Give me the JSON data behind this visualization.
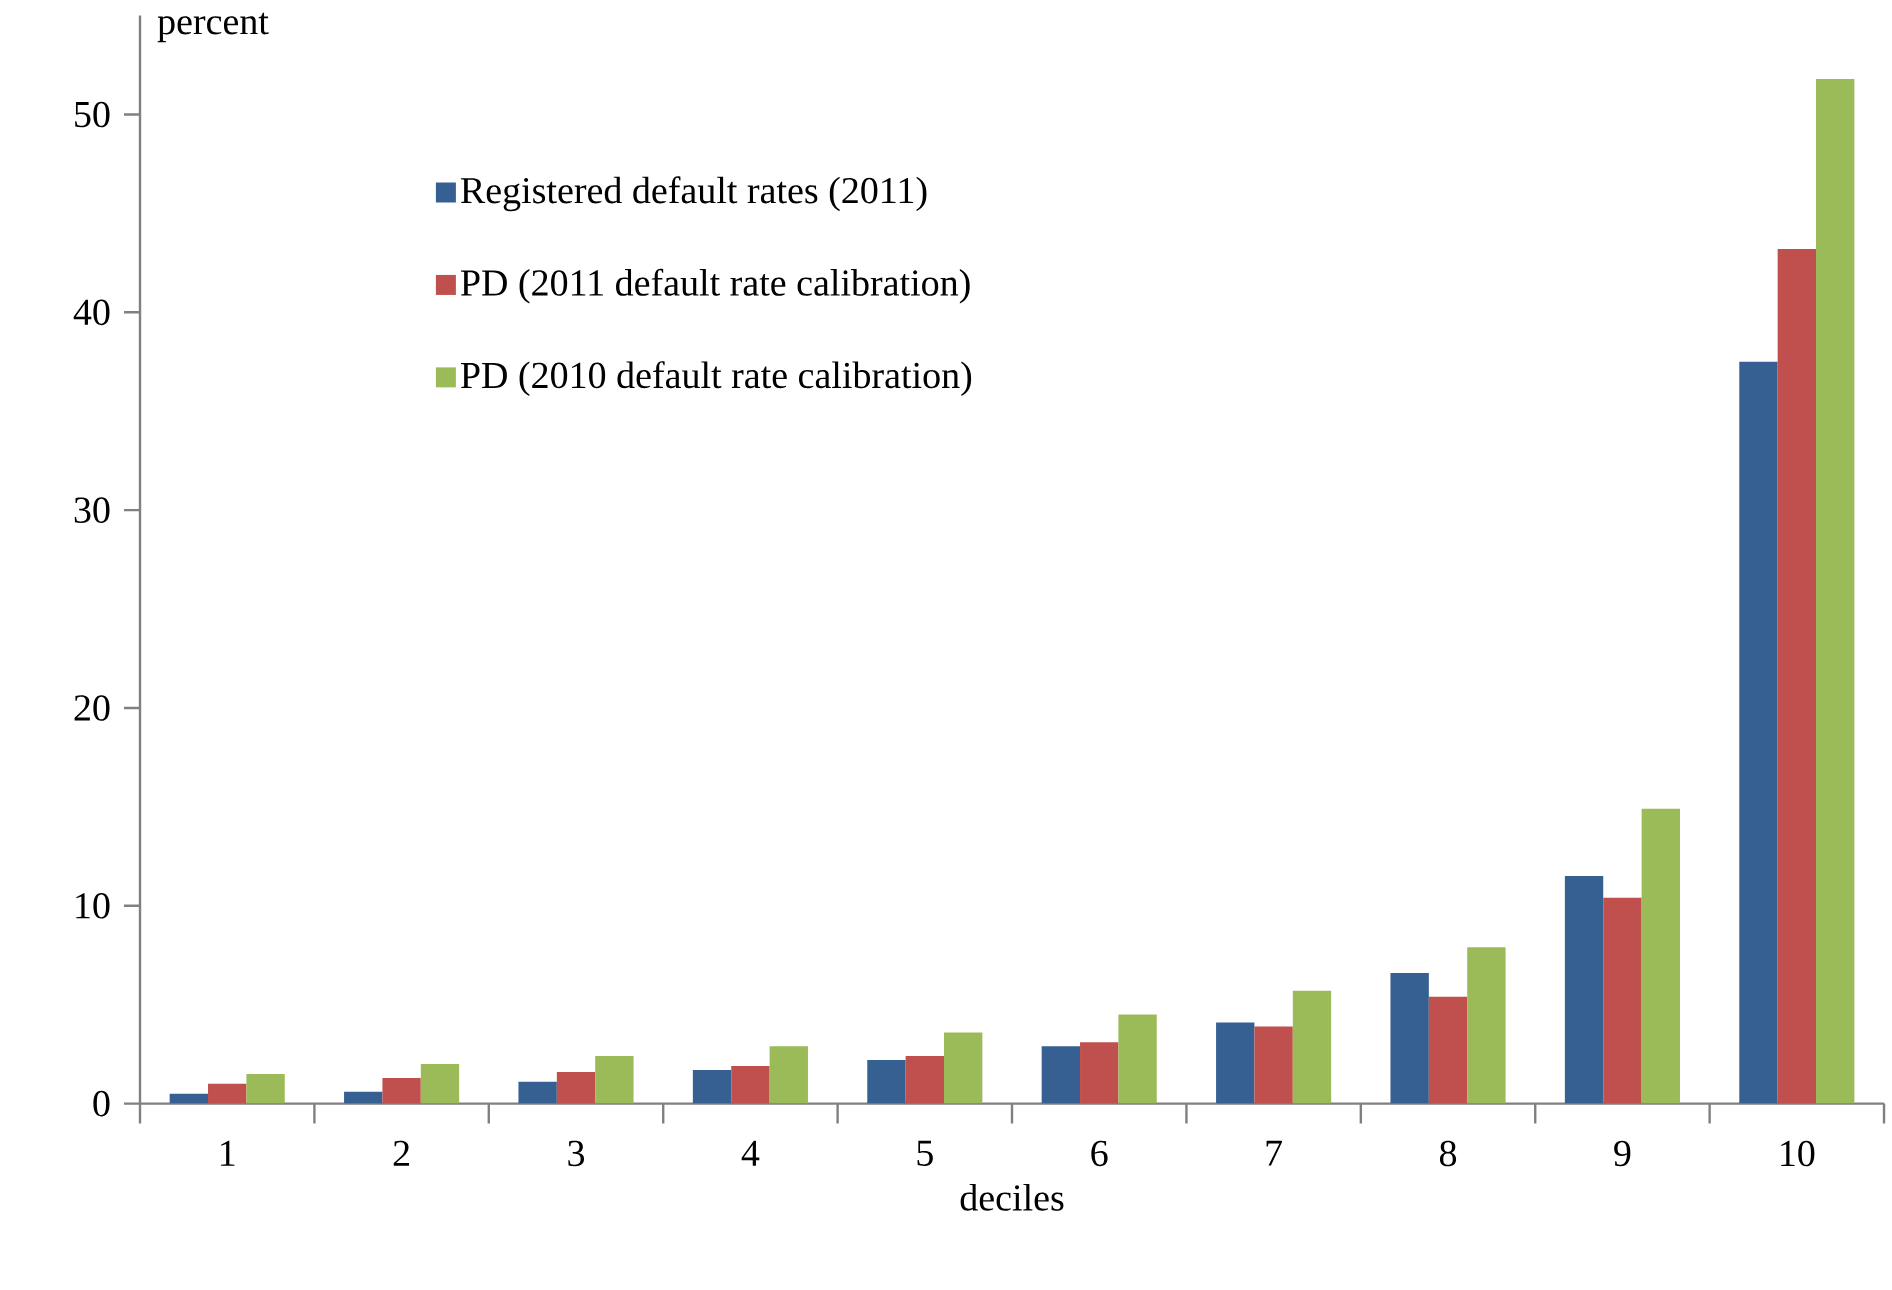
{
  "chart_data": {
    "type": "bar",
    "xlabel": "deciles",
    "ylabel": "percent",
    "categories": [
      "1",
      "2",
      "3",
      "4",
      "5",
      "6",
      "7",
      "8",
      "9",
      "10"
    ],
    "series": [
      {
        "name": "Registered default rates (2011)",
        "color": "#366092",
        "values": [
          0.5,
          0.6,
          1.1,
          1.7,
          2.2,
          2.9,
          4.1,
          6.6,
          11.5,
          37.5
        ]
      },
      {
        "name": "PD (2011 default rate calibration)",
        "color": "#c0504d",
        "values": [
          1.0,
          1.3,
          1.6,
          1.9,
          2.4,
          3.1,
          3.9,
          5.4,
          10.4,
          43.2
        ]
      },
      {
        "name": "PD (2010 default rate calibration)",
        "color": "#9bbb59",
        "values": [
          1.5,
          2.0,
          2.4,
          2.9,
          3.6,
          4.5,
          5.7,
          7.9,
          14.9,
          51.8
        ]
      }
    ],
    "ylim": [
      0,
      55
    ],
    "yticks": [
      0,
      10,
      20,
      30,
      40,
      50
    ],
    "legend": "top left"
  }
}
